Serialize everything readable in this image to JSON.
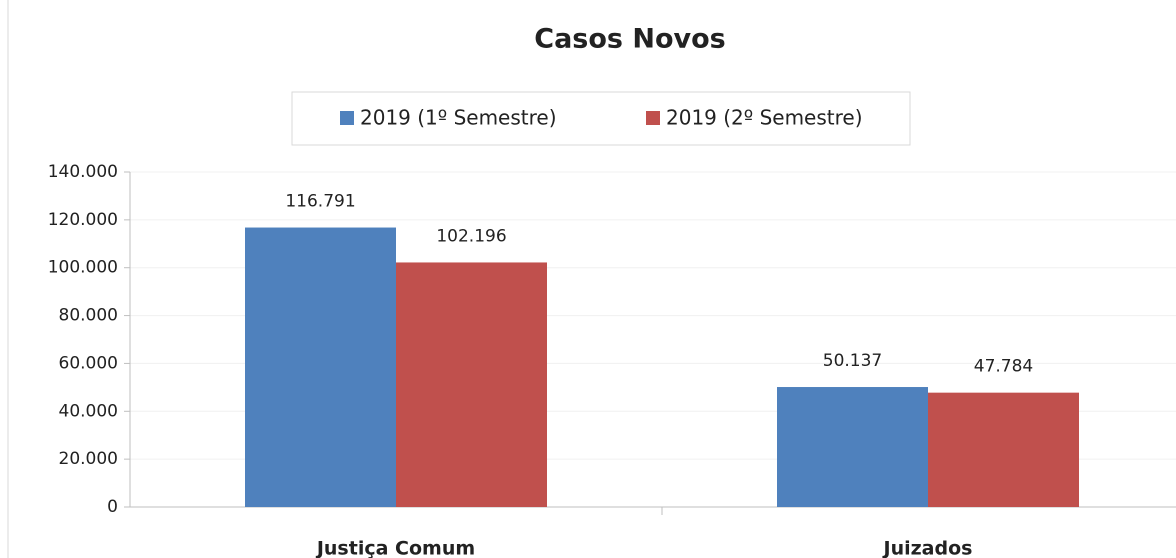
{
  "chart_data": {
    "type": "bar",
    "title": "Casos Novos",
    "categories": [
      "Justiça Comum",
      "Juizados"
    ],
    "series": [
      {
        "name": "2019 (1º Semestre)",
        "color": "#4f81bd",
        "values": [
          116791,
          50137
        ],
        "value_labels": [
          "116.791",
          "50.137"
        ]
      },
      {
        "name": "2019 (2º Semestre)",
        "color": "#c0504d",
        "values": [
          102196,
          47784
        ],
        "value_labels": [
          "102.196",
          "47.784"
        ]
      }
    ],
    "ylim": [
      0,
      140000
    ],
    "yticks": [
      0,
      {
        "value": 20000,
        "label": "20.000"
      },
      {
        "value": 40000,
        "label": "40.000"
      },
      {
        "value": 60000,
        "label": "60.000"
      },
      {
        "value": 80000,
        "label": "80.000"
      },
      {
        "value": 100000,
        "label": "100.000"
      },
      {
        "value": 120000,
        "label": "120.000"
      },
      {
        "value": 140000,
        "label": "140.000"
      }
    ],
    "grid": true,
    "legend": "top"
  }
}
